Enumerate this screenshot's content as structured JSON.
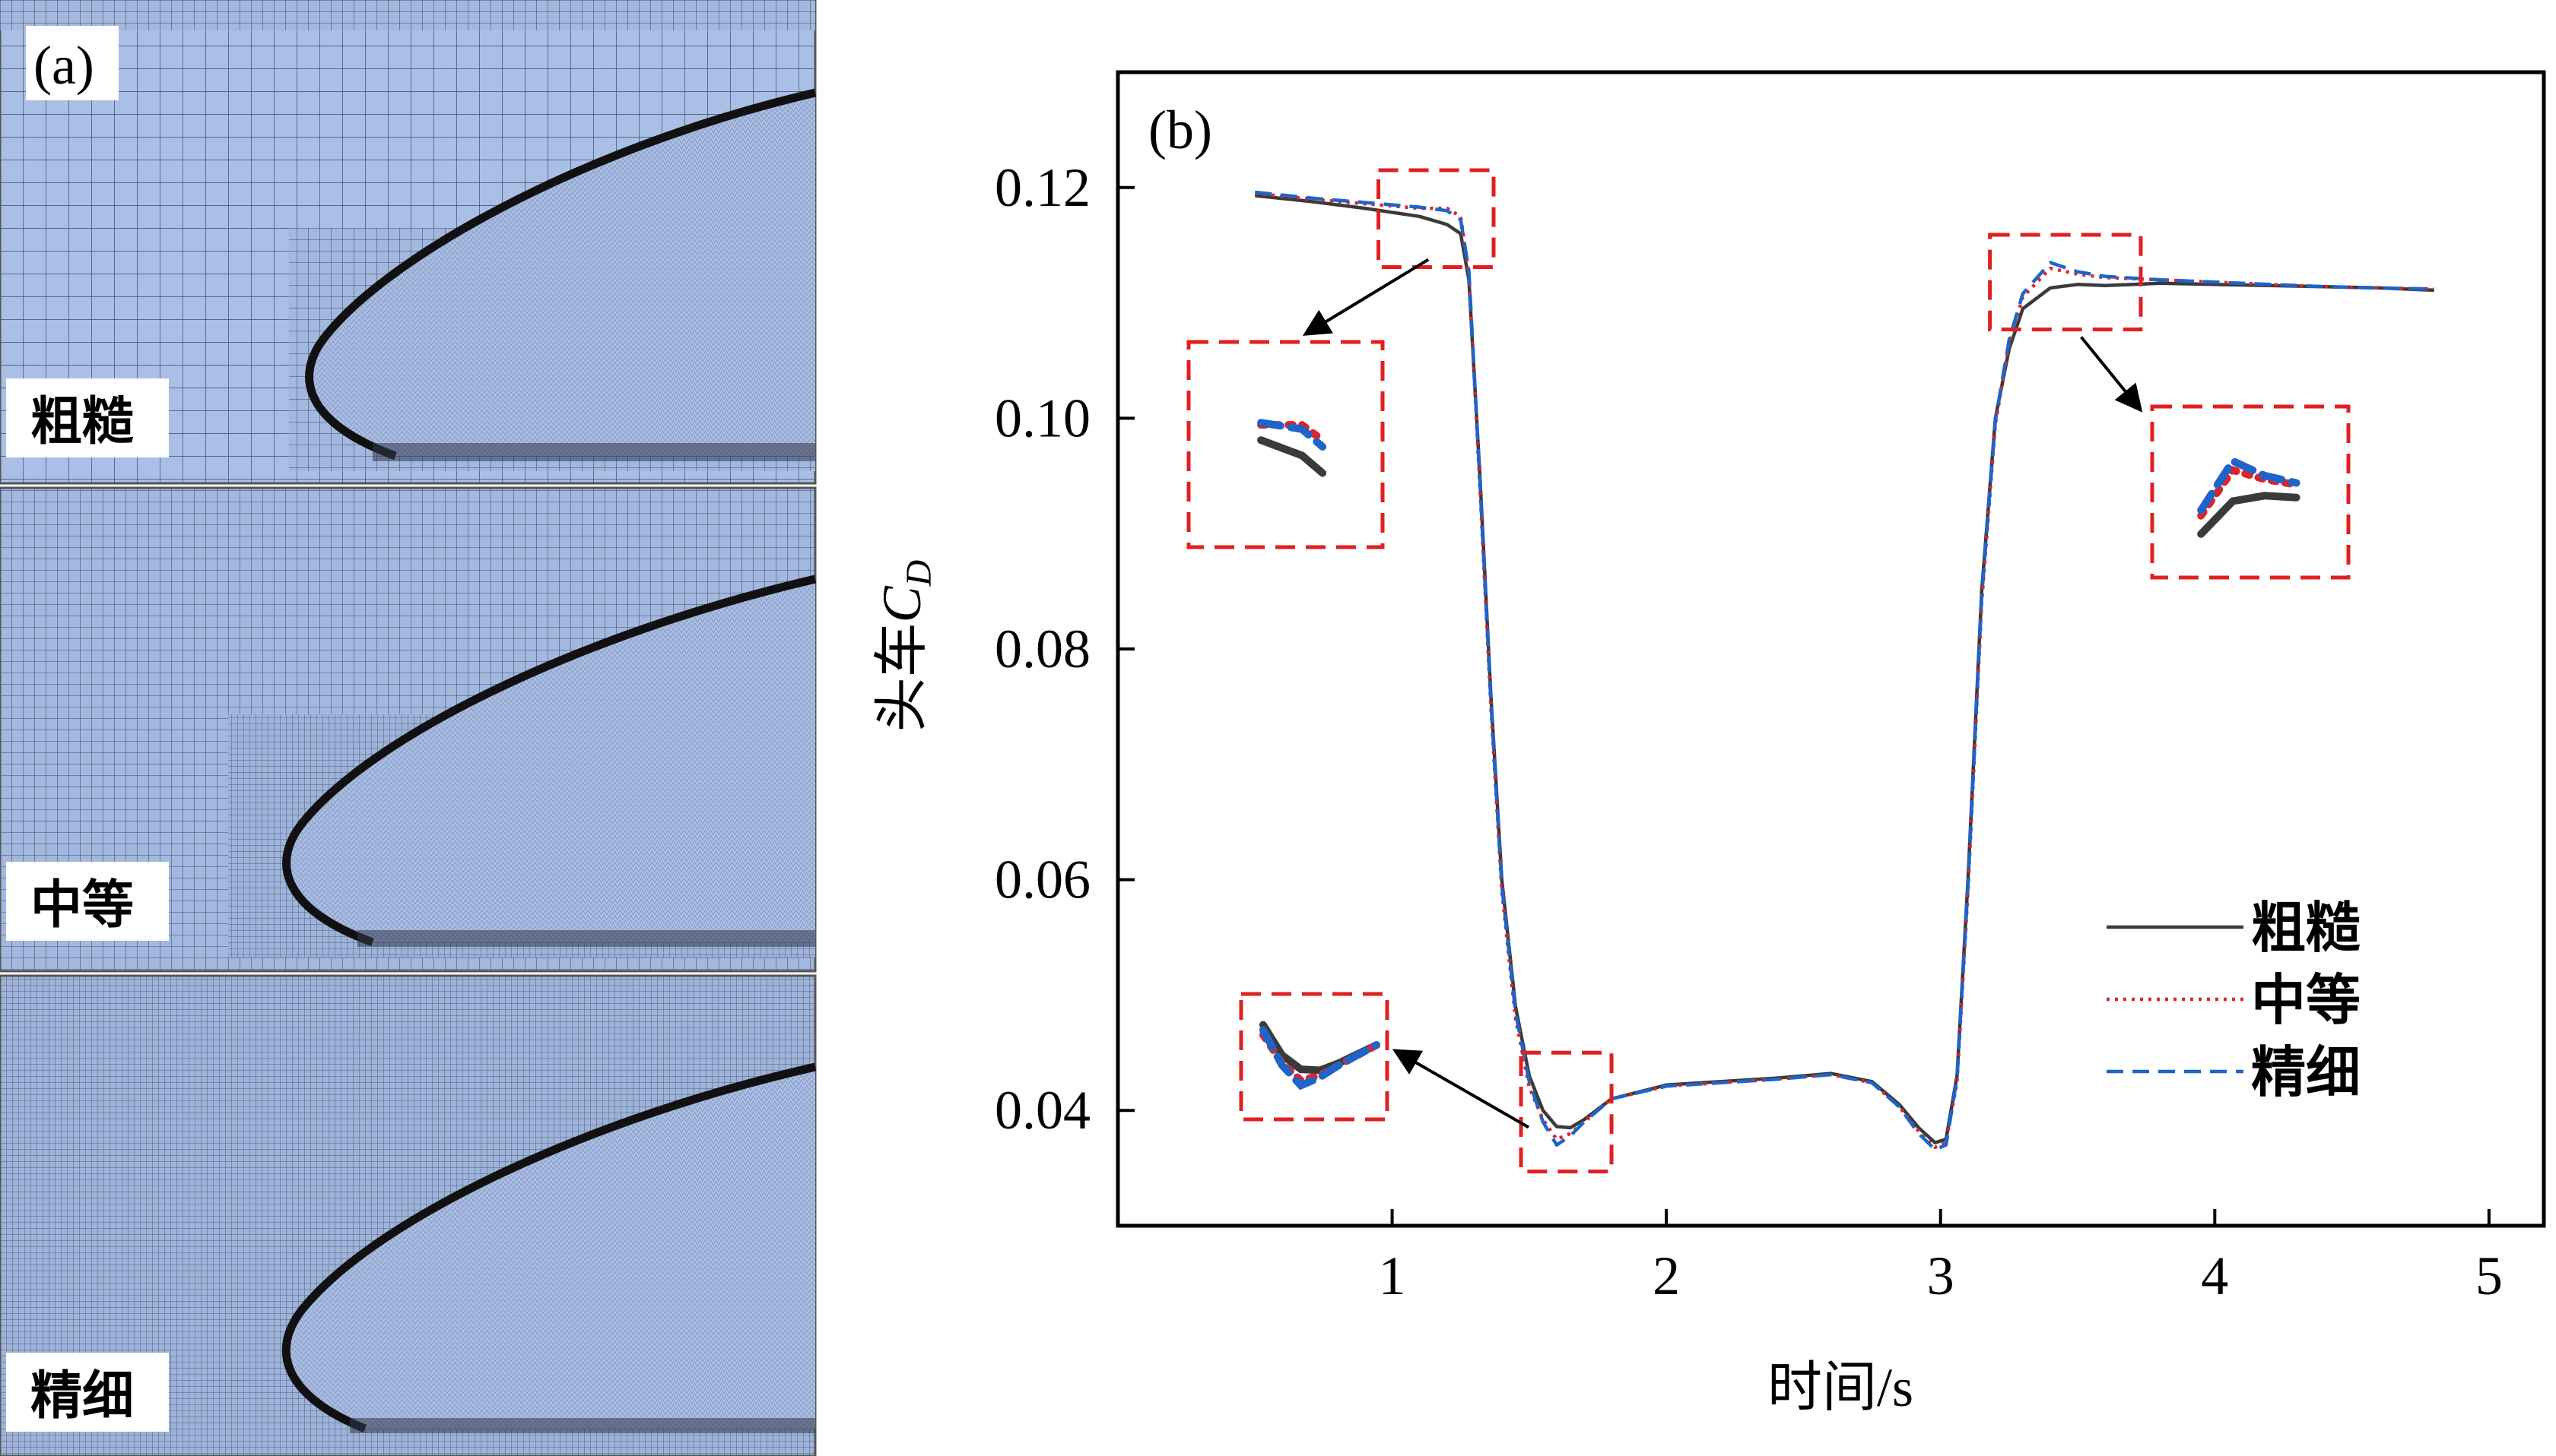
{
  "panel_a": {
    "tag": "(a)",
    "panels": [
      {
        "label": "粗糙"
      },
      {
        "label": "中等"
      },
      {
        "label": "精细"
      }
    ],
    "colors": {
      "mesh_fill": "#a9bfe5",
      "mesh_line": "#3d4a66",
      "body_edge": "#111111"
    }
  },
  "chart_data": {
    "type": "line",
    "tag": "(b)",
    "xlabel": "时间/s",
    "ylabel_main": "头车",
    "ylabel_sym": "C",
    "ylabel_sub": "D",
    "xlim": [
      0.0,
      5.2
    ],
    "ylim": [
      0.03,
      0.13
    ],
    "xticks": [
      1,
      2,
      3,
      4,
      5
    ],
    "yticks": [
      0.04,
      0.06,
      0.08,
      0.1,
      0.12
    ],
    "ytick_labels": [
      "0.04",
      "0.06",
      "0.08",
      "0.10",
      "0.12"
    ],
    "legend_position": "right-middle",
    "series": [
      {
        "name": "粗糙",
        "color": "#3a3a3a",
        "dash": "solid",
        "x": [
          0.5,
          0.7,
          0.9,
          1.1,
          1.2,
          1.25,
          1.28,
          1.32,
          1.36,
          1.4,
          1.45,
          1.5,
          1.55,
          1.6,
          1.65,
          1.7,
          1.8,
          2.0,
          2.2,
          2.4,
          2.6,
          2.75,
          2.85,
          2.92,
          2.98,
          3.02,
          3.06,
          3.1,
          3.15,
          3.2,
          3.25,
          3.3,
          3.4,
          3.5,
          3.6,
          3.8,
          4.0,
          4.2,
          4.4,
          4.6,
          4.8
        ],
        "y": [
          0.1193,
          0.1188,
          0.1182,
          0.1175,
          0.1168,
          0.116,
          0.112,
          0.095,
          0.076,
          0.06,
          0.049,
          0.043,
          0.04,
          0.0386,
          0.0385,
          0.0392,
          0.041,
          0.0422,
          0.0425,
          0.0428,
          0.0432,
          0.0425,
          0.0405,
          0.0385,
          0.0372,
          0.0375,
          0.043,
          0.06,
          0.085,
          0.1,
          0.106,
          0.1095,
          0.1113,
          0.1116,
          0.1115,
          0.1117,
          0.1116,
          0.1115,
          0.1114,
          0.1113,
          0.1111
        ]
      },
      {
        "name": "中等",
        "color": "#d9252b",
        "dash": "dotted",
        "x": [
          0.5,
          0.7,
          0.9,
          1.1,
          1.2,
          1.25,
          1.28,
          1.32,
          1.36,
          1.4,
          1.45,
          1.5,
          1.55,
          1.6,
          1.65,
          1.7,
          1.8,
          2.0,
          2.2,
          2.4,
          2.6,
          2.75,
          2.85,
          2.92,
          2.98,
          3.02,
          3.06,
          3.1,
          3.15,
          3.2,
          3.25,
          3.3,
          3.4,
          3.5,
          3.6,
          3.8,
          4.0,
          4.2,
          4.4,
          4.6,
          4.8
        ],
        "y": [
          0.1195,
          0.119,
          0.1186,
          0.1182,
          0.1182,
          0.1175,
          0.1125,
          0.094,
          0.075,
          0.059,
          0.048,
          0.042,
          0.0392,
          0.0375,
          0.038,
          0.039,
          0.041,
          0.0421,
          0.0424,
          0.0427,
          0.0431,
          0.0424,
          0.0403,
          0.0382,
          0.0368,
          0.0372,
          0.0425,
          0.059,
          0.084,
          0.0995,
          0.1065,
          0.1105,
          0.113,
          0.1125,
          0.1122,
          0.112,
          0.1118,
          0.1116,
          0.1114,
          0.1113,
          0.1112
        ]
      },
      {
        "name": "精细",
        "color": "#1f64c8",
        "dash": "dashed",
        "x": [
          0.5,
          0.7,
          0.9,
          1.1,
          1.2,
          1.25,
          1.28,
          1.32,
          1.36,
          1.4,
          1.45,
          1.5,
          1.55,
          1.6,
          1.65,
          1.7,
          1.8,
          2.0,
          2.2,
          2.4,
          2.6,
          2.75,
          2.85,
          2.92,
          2.98,
          3.02,
          3.06,
          3.1,
          3.15,
          3.2,
          3.25,
          3.3,
          3.4,
          3.5,
          3.6,
          3.8,
          4.0,
          4.2,
          4.4,
          4.6,
          4.8
        ],
        "y": [
          0.1196,
          0.1191,
          0.1187,
          0.1183,
          0.118,
          0.1172,
          0.1128,
          0.0945,
          0.0755,
          0.0595,
          0.0485,
          0.0425,
          0.039,
          0.037,
          0.0378,
          0.039,
          0.041,
          0.0421,
          0.0424,
          0.0427,
          0.0431,
          0.0424,
          0.0403,
          0.038,
          0.0366,
          0.037,
          0.0428,
          0.0595,
          0.0845,
          0.0998,
          0.1068,
          0.1108,
          0.1135,
          0.1127,
          0.1123,
          0.112,
          0.1118,
          0.1116,
          0.1114,
          0.1113,
          0.1112
        ]
      }
    ],
    "insets": [
      {
        "name": "inset-plateau-top",
        "region_x": [
          0.95,
          1.37
        ],
        "region_y": [
          0.1131,
          0.1215
        ]
      },
      {
        "name": "inset-trough",
        "region_x": [
          1.47,
          1.8
        ],
        "region_y": [
          0.0347,
          0.045
        ]
      },
      {
        "name": "inset-overshoot",
        "region_x": [
          3.18,
          3.73
        ],
        "region_y": [
          0.1077,
          0.1159
        ]
      }
    ]
  }
}
